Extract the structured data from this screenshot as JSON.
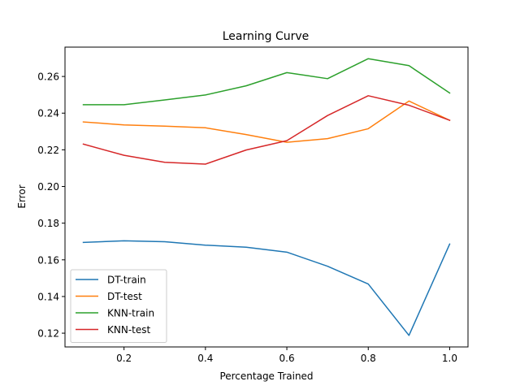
{
  "chart_data": {
    "type": "line",
    "title": "Learning Curve",
    "xlabel": "Percentage Trained",
    "ylabel": "Error",
    "xlim": [
      0.055,
      1.045
    ],
    "ylim": [
      0.1125,
      0.276
    ],
    "x": [
      0.1,
      0.2,
      0.3,
      0.4,
      0.5,
      0.6,
      0.7,
      0.8,
      0.9,
      1.0
    ],
    "xticks": [
      0.2,
      0.4,
      0.6,
      0.8,
      1.0
    ],
    "xtick_labels": [
      "0.2",
      "0.4",
      "0.6",
      "0.8",
      "1.0"
    ],
    "yticks": [
      0.12,
      0.14,
      0.16,
      0.18,
      0.2,
      0.22,
      0.24,
      0.26
    ],
    "ytick_labels": [
      "0.12",
      "0.14",
      "0.16",
      "0.18",
      "0.20",
      "0.22",
      "0.24",
      "0.26"
    ],
    "grid": false,
    "legend_position": "lower-left",
    "series": [
      {
        "name": "DT-train",
        "color": "#1f77b4",
        "values": [
          0.1695,
          0.1704,
          0.1699,
          0.168,
          0.1669,
          0.1642,
          0.1565,
          0.1468,
          0.1188,
          0.1686
        ]
      },
      {
        "name": "DT-test",
        "color": "#ff7f0e",
        "values": [
          0.2352,
          0.2336,
          0.2329,
          0.232,
          0.2283,
          0.2241,
          0.2261,
          0.2315,
          0.2466,
          0.2361
        ]
      },
      {
        "name": "KNN-train",
        "color": "#2ca02c",
        "values": [
          0.2446,
          0.2446,
          0.2472,
          0.2499,
          0.2549,
          0.2621,
          0.2588,
          0.2697,
          0.2659,
          0.251
        ]
      },
      {
        "name": "KNN-test",
        "color": "#d62728",
        "values": [
          0.2231,
          0.217,
          0.2132,
          0.2122,
          0.2199,
          0.225,
          0.2387,
          0.2495,
          0.2443,
          0.2361
        ]
      }
    ]
  }
}
